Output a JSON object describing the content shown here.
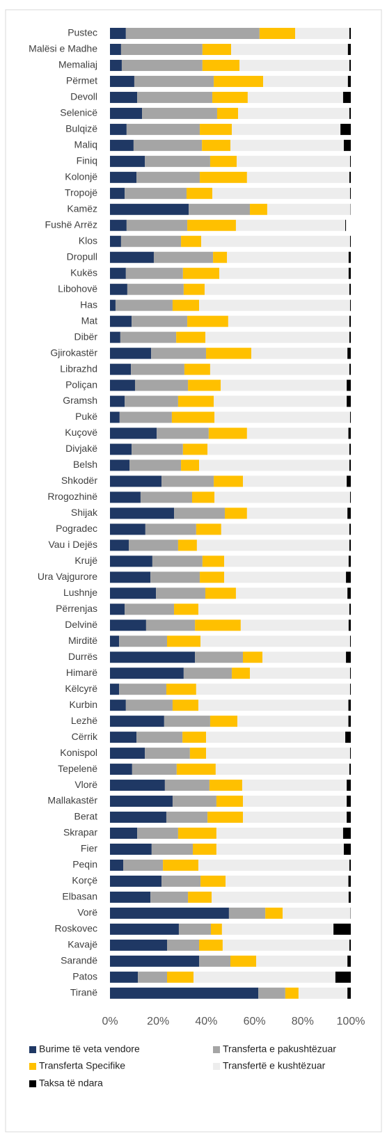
{
  "chart_data": {
    "type": "bar",
    "orientation": "horizontal",
    "stacked": true,
    "categories": [
      "Pustec",
      "Malësi e Madhe",
      "Memaliaj",
      "Përmet",
      "Devoll",
      "Selenicë",
      "Bulqizë",
      "Maliq",
      "Finiq",
      "Kolonjë",
      "Tropojë",
      "Kamëz",
      "Fushë Arrëz",
      "Klos",
      "Dropull",
      "Kukës",
      "Libohovë",
      "Has",
      "Mat",
      "Dibër",
      "Gjirokastër",
      "Librazhd",
      "Poliçan",
      "Gramsh",
      "Pukë",
      "Kuçovë",
      "Divjakë",
      "Belsh",
      "Shkodër",
      "Rrogozhinë",
      "Shijak",
      "Pogradec",
      "Vau i Dejës",
      "Krujë",
      "Ura Vajgurore",
      "Lushnje",
      "Përrenjas",
      "Delvinë",
      "Mirditë",
      "Durrës",
      "Himarë",
      "Këlcyrë",
      "Kurbin",
      "Lezhë",
      "Cërrik",
      "Konispol",
      "Tepelenë",
      "Vlorë",
      "Mallakastër",
      "Berat",
      "Skrapar",
      "Fier",
      "Peqin",
      "Korçë",
      "Elbasan",
      "Vorë",
      "Roskovec",
      "Kavajë",
      "Sarandë",
      "Patos",
      "Tiranë"
    ],
    "series": [
      {
        "name": "Burime të veta vendore",
        "color": "#1f3864",
        "values": [
          6.6,
          4.6,
          4.9,
          10.1,
          11.3,
          13.3,
          6.9,
          9.8,
          14.5,
          11.0,
          6.1,
          32.7,
          6.9,
          4.6,
          18.2,
          6.6,
          7.2,
          2.3,
          9.0,
          4.3,
          17.1,
          8.7,
          10.4,
          6.1,
          4.0,
          19.4,
          9.0,
          8.1,
          21.4,
          12.7,
          26.6,
          14.7,
          7.8,
          17.6,
          16.8,
          19.1,
          6.1,
          15.0,
          3.8,
          35.3,
          30.6,
          3.8,
          6.6,
          22.5,
          11.0,
          14.5,
          9.2,
          22.8,
          26.0,
          23.4,
          11.3,
          17.3,
          5.5,
          21.4,
          16.8,
          49.4,
          28.6,
          23.7,
          37.0,
          11.6,
          61.6
        ]
      },
      {
        "name": "Transferta e pakushtëzuar",
        "color": "#a5a5a5",
        "values": [
          55.5,
          33.8,
          33.5,
          33.0,
          31.2,
          31.2,
          30.4,
          28.4,
          27.1,
          26.3,
          25.7,
          25.4,
          25.2,
          24.9,
          24.6,
          23.7,
          23.4,
          23.7,
          23.1,
          23.2,
          22.8,
          22.2,
          22.0,
          22.2,
          21.7,
          21.6,
          21.3,
          21.4,
          21.7,
          21.4,
          21.1,
          21.1,
          20.5,
          20.8,
          20.5,
          20.5,
          20.5,
          20.3,
          19.9,
          19.9,
          20.0,
          19.6,
          19.4,
          19.1,
          19.1,
          18.7,
          18.5,
          18.5,
          18.2,
          17.1,
          17.0,
          17.1,
          16.5,
          16.2,
          15.6,
          15.1,
          13.3,
          13.3,
          13.0,
          12.1,
          11.2
        ]
      },
      {
        "name": "Transferta Specifike",
        "color": "#ffc000",
        "values": [
          14.8,
          11.9,
          15.4,
          20.5,
          14.7,
          8.7,
          13.3,
          11.8,
          11.0,
          19.6,
          10.7,
          7.2,
          20.2,
          8.4,
          5.8,
          15.1,
          8.7,
          11.0,
          17.0,
          12.1,
          18.8,
          10.7,
          13.6,
          14.8,
          17.7,
          15.9,
          10.2,
          7.5,
          12.1,
          9.3,
          9.2,
          10.4,
          7.8,
          9.0,
          10.1,
          12.7,
          10.1,
          19.0,
          13.9,
          8.1,
          7.5,
          12.4,
          10.7,
          11.3,
          9.8,
          6.7,
          16.2,
          13.6,
          11.0,
          14.7,
          15.9,
          9.8,
          14.7,
          10.4,
          9.8,
          7.2,
          4.6,
          9.8,
          10.7,
          11.0,
          5.5
        ]
      },
      {
        "name": "Transfertë e kushtëzuar",
        "color": "#ededed",
        "values": [
          22.5,
          48.5,
          45.6,
          35.2,
          39.6,
          46.2,
          45.1,
          47.1,
          47.1,
          42.5,
          57.2,
          34.6,
          45.4,
          61.8,
          50.5,
          53.7,
          60.1,
          62.7,
          50.3,
          59.8,
          39.9,
          57.8,
          52.3,
          55.2,
          56.3,
          42.1,
          58.9,
          62.4,
          43.1,
          56.3,
          41.7,
          53.2,
          63.3,
          51.7,
          50.6,
          46.3,
          62.7,
          44.8,
          62.1,
          34.7,
          41.6,
          63.9,
          62.3,
          46.1,
          57.8,
          59.8,
          55.5,
          43.4,
          43.1,
          43.1,
          52.6,
          52.9,
          62.7,
          51.0,
          56.9,
          28.2,
          46.3,
          52.6,
          37.9,
          58.9,
          20.3
        ]
      },
      {
        "name": "Taksa të ndara",
        "color": "#000000",
        "values": [
          0.6,
          1.2,
          0.6,
          1.2,
          3.2,
          0.6,
          4.3,
          2.9,
          0.3,
          0.6,
          0.3,
          0.1,
          0.3,
          0.3,
          0.9,
          0.9,
          0.6,
          0.3,
          0.6,
          0.6,
          1.4,
          0.6,
          1.7,
          1.7,
          0.3,
          1.0,
          0.6,
          0.6,
          1.7,
          0.3,
          1.4,
          0.6,
          0.6,
          0.9,
          2.0,
          1.4,
          0.6,
          0.9,
          0.3,
          2.0,
          0.3,
          0.3,
          1.0,
          1.0,
          2.3,
          0.3,
          0.6,
          1.7,
          1.7,
          1.7,
          3.2,
          2.9,
          0.6,
          1.0,
          0.9,
          0.1,
          7.2,
          0.6,
          1.4,
          6.4,
          1.4
        ]
      }
    ],
    "xlim": [
      0,
      100
    ],
    "xticks": [
      {
        "value": 0,
        "label": "0%"
      },
      {
        "value": 20,
        "label": "20%"
      },
      {
        "value": 40,
        "label": "40%"
      },
      {
        "value": 60,
        "label": "60%"
      },
      {
        "value": 80,
        "label": "80%"
      },
      {
        "value": 100,
        "label": "100%"
      }
    ],
    "legend": "bottom"
  }
}
